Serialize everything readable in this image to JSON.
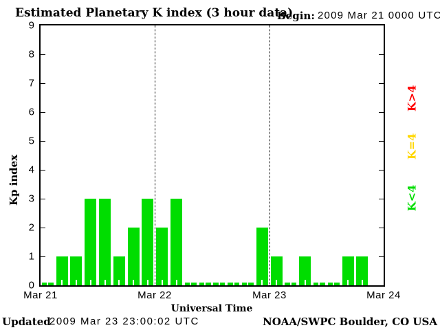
{
  "header": {
    "title": "Estimated Planetary K index (3 hour data)",
    "begin_label": "Begin:",
    "begin_value": "2009 Mar 21 0000 UTC"
  },
  "chart_data": {
    "type": "bar",
    "title": "Estimated Planetary K index (3 hour data)",
    "xlabel": "Universal Time",
    "ylabel": "Kp index",
    "ylim": [
      0,
      9
    ],
    "yticks": [
      0,
      1,
      2,
      3,
      4,
      5,
      6,
      7,
      8,
      9
    ],
    "x_day_labels": [
      "Mar 21",
      "Mar 22",
      "Mar 23",
      "Mar 24"
    ],
    "hours_per_bar": 3,
    "bars_per_day": 8,
    "values": [
      0,
      1,
      1,
      3,
      3,
      1,
      2,
      3,
      2,
      3,
      0,
      0,
      0,
      0,
      0,
      2,
      1,
      0,
      1,
      0,
      0,
      1,
      1,
      null
    ],
    "bar_color": "#00dd00",
    "grid": "dotted vertical lines at day boundaries, box border on all sides",
    "legend_position": "right side, rotated 90deg",
    "legend": [
      {
        "label": "K>4",
        "color": "#ff0000"
      },
      {
        "label": "K=4",
        "color": "#ffd700"
      },
      {
        "label": "K<4",
        "color": "#00dd00"
      }
    ]
  },
  "footer": {
    "updated_label": "Updated",
    "updated_value": "2009 Mar 23 23:00:02 UTC",
    "credit": "NOAA/SWPC Boulder, CO USA"
  }
}
